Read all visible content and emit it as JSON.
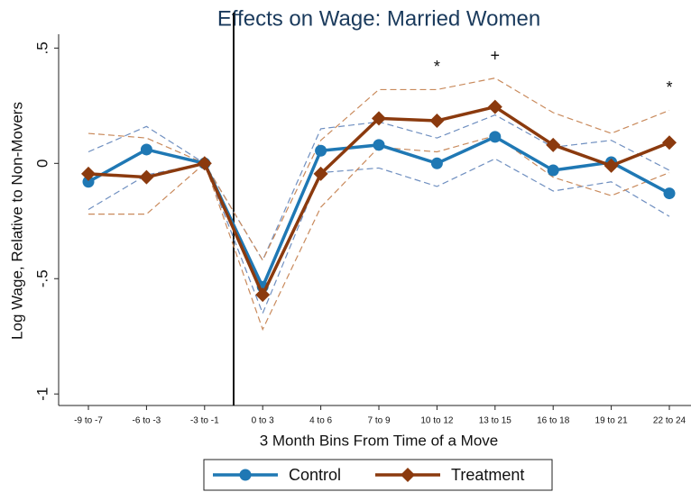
{
  "chart_data": {
    "type": "line",
    "title": "Effects on Wage: Married Women",
    "x_label": "3 Month Bins From Time of a Move",
    "y_label": "Log Wage, Relative to Non-Movers",
    "categories": [
      "-9 to -7",
      "-6 to -3",
      "-3 to -1",
      "0 to 3",
      "4 to 6",
      "7 to 9",
      "10 to 12",
      "13 to 15",
      "16 to 18",
      "19 to 21",
      "22 to 24"
    ],
    "series": [
      {
        "name": "Control",
        "color": "#1f78b4",
        "ci_color": "#6f8fc0",
        "marker": "circle",
        "values": [
          -0.08,
          0.06,
          0,
          -0.535,
          0.055,
          0.08,
          0,
          0.115,
          -0.03,
          0.005,
          -0.13
        ],
        "ci_lower": [
          -0.2,
          -0.05,
          0,
          -0.65,
          -0.04,
          -0.02,
          -0.1,
          0.02,
          -0.12,
          -0.08,
          -0.23
        ],
        "ci_upper": [
          0.05,
          0.16,
          0,
          -0.42,
          0.15,
          0.18,
          0.11,
          0.21,
          0.07,
          0.1,
          -0.03
        ]
      },
      {
        "name": "Treatment",
        "color": "#8b3a0e",
        "ci_color": "#c98a5c",
        "marker": "diamond",
        "values": [
          -0.045,
          -0.06,
          0,
          -0.57,
          -0.045,
          0.195,
          0.185,
          0.245,
          0.08,
          -0.01,
          0.09
        ],
        "ci_lower": [
          -0.22,
          -0.22,
          0,
          -0.72,
          -0.19,
          0.07,
          0.05,
          0.12,
          -0.06,
          -0.14,
          -0.04
        ],
        "ci_upper": [
          0.13,
          0.11,
          0,
          -0.42,
          0.1,
          0.32,
          0.32,
          0.37,
          0.22,
          0.13,
          0.23
        ]
      }
    ],
    "annotations": [
      {
        "text": "*",
        "category": "10 to 12"
      },
      {
        "text": "+",
        "category": "13 to 15"
      },
      {
        "text": "*",
        "category": "22 to 24"
      }
    ],
    "ylim": [
      -1.05,
      0.56
    ],
    "yticks": [
      {
        "value": 0.5,
        "label": ".5"
      },
      0,
      {
        "value": -0.5,
        "label": "-.5"
      },
      -1
    ],
    "grid": false
  }
}
